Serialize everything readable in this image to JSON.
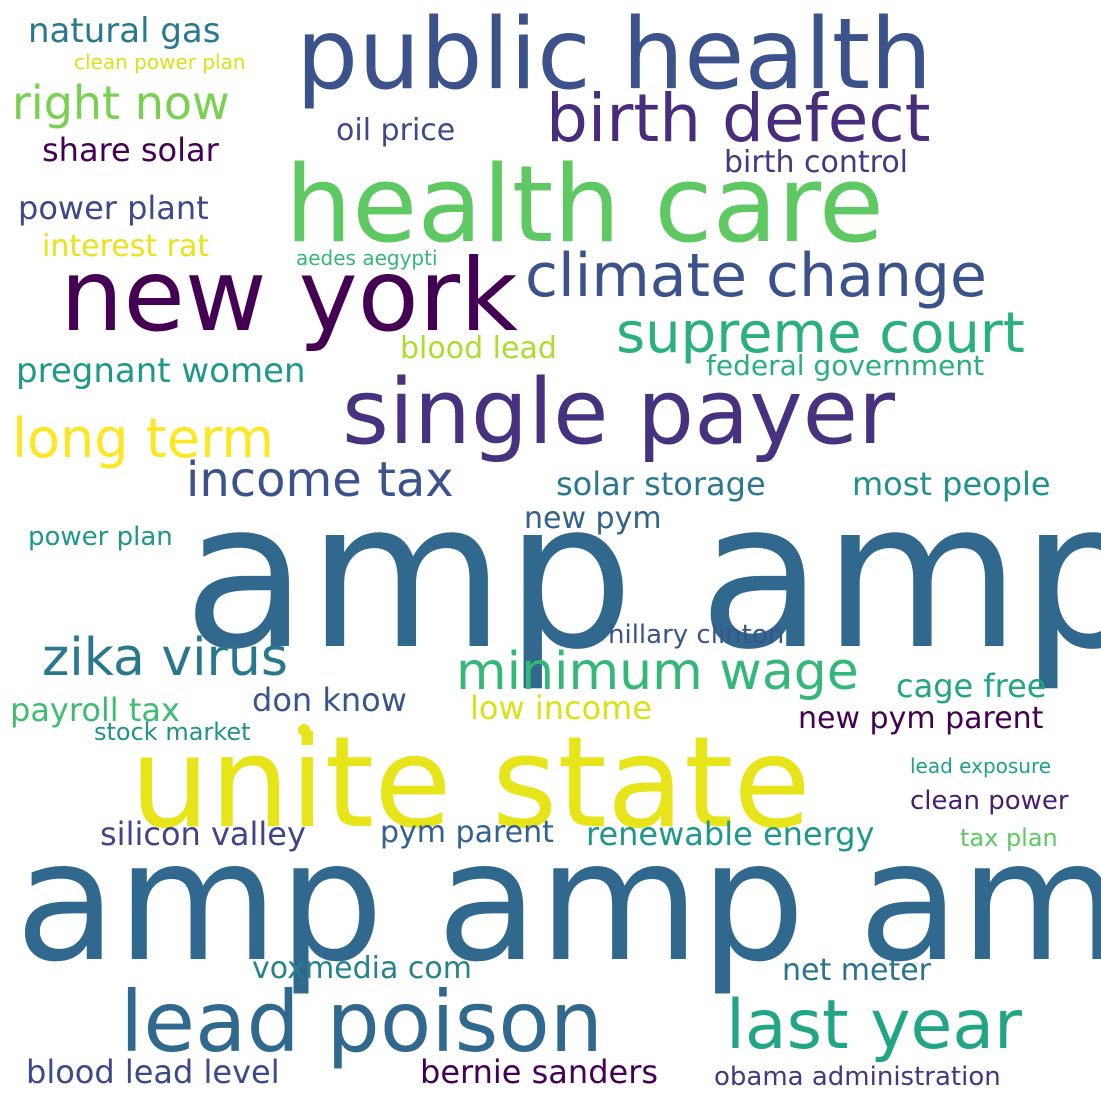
{
  "words": [
    {
      "text": "amp amp",
      "color": "#31688e"
    },
    {
      "text": "amp amp amp",
      "color": "#31688e"
    },
    {
      "text": "unite state",
      "color": "#e7e419"
    },
    {
      "text": "public health",
      "color": "#3b528b"
    },
    {
      "text": "health care",
      "color": "#5ec962"
    },
    {
      "text": "new york",
      "color": "#440154"
    },
    {
      "text": "single payer",
      "color": "#46327e"
    },
    {
      "text": "lead poison",
      "color": "#31688e"
    },
    {
      "text": "climate change",
      "color": "#3b528b"
    },
    {
      "text": "birth defect",
      "color": "#472d7b"
    },
    {
      "text": "last year",
      "color": "#21a585"
    },
    {
      "text": "supreme court",
      "color": "#2ab07f"
    },
    {
      "text": "minimum wage",
      "color": "#35b779"
    },
    {
      "text": "zika virus",
      "color": "#2a788e"
    },
    {
      "text": "long term",
      "color": "#fde725"
    },
    {
      "text": "income tax",
      "color": "#3b528b"
    },
    {
      "text": "right now",
      "color": "#7ad151"
    },
    {
      "text": "natural gas",
      "color": "#2a788e"
    },
    {
      "text": "clean power plan",
      "color": "#d8e219"
    },
    {
      "text": "oil price",
      "color": "#3e4989"
    },
    {
      "text": "share solar",
      "color": "#440154"
    },
    {
      "text": "birth control",
      "color": "#443a83"
    },
    {
      "text": "power plant",
      "color": "#3e4989"
    },
    {
      "text": "interest rat",
      "color": "#e7e419"
    },
    {
      "text": "aedes aegypti",
      "color": "#35b779"
    },
    {
      "text": "blood lead",
      "color": "#addc30"
    },
    {
      "text": "pregnant women",
      "color": "#1f988b"
    },
    {
      "text": "federal government",
      "color": "#2ab07f"
    },
    {
      "text": "solar storage",
      "color": "#2a788e"
    },
    {
      "text": "most people",
      "color": "#21918c"
    },
    {
      "text": "new pym",
      "color": "#33638d"
    },
    {
      "text": "power plan",
      "color": "#1f988b"
    },
    {
      "text": "hillary clinton",
      "color": "#3b528b"
    },
    {
      "text": "cage free",
      "color": "#21a585"
    },
    {
      "text": "don know",
      "color": "#39568c"
    },
    {
      "text": "payroll tax",
      "color": "#3fbc73"
    },
    {
      "text": "low income",
      "color": "#d8e219"
    },
    {
      "text": "new pym parent",
      "color": "#440154"
    },
    {
      "text": "stock market",
      "color": "#21918c"
    },
    {
      "text": "lead exposure",
      "color": "#1fa187"
    },
    {
      "text": "clean power",
      "color": "#481f70"
    },
    {
      "text": "silicon valley",
      "color": "#414487"
    },
    {
      "text": "pym parent",
      "color": "#33638d"
    },
    {
      "text": "renewable energy",
      "color": "#1f988b"
    },
    {
      "text": "tax plan",
      "color": "#5ec962"
    },
    {
      "text": "voxmedia com",
      "color": "#26828e"
    },
    {
      "text": "net meter",
      "color": "#2c728e"
    },
    {
      "text": "blood lead level",
      "color": "#3e4989"
    },
    {
      "text": "bernie sanders",
      "color": "#440154"
    },
    {
      "text": "obama administration",
      "color": "#453781"
    }
  ],
  "dot_color": "#e7e419"
}
